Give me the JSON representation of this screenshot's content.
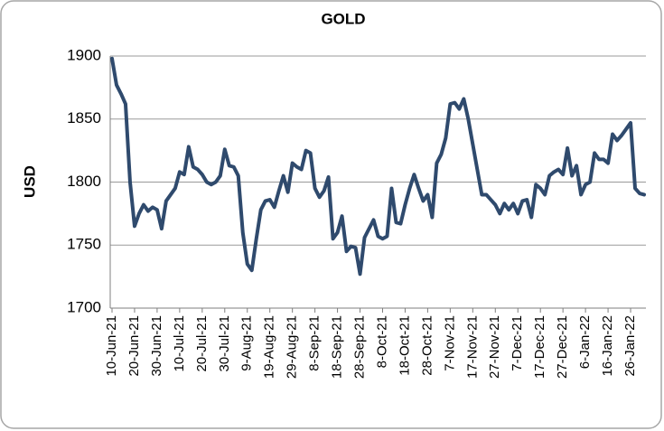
{
  "chart_data": {
    "type": "line",
    "title": "GOLD",
    "y_label": "USD",
    "categories": [
      "10-Jun-21",
      null,
      null,
      null,
      null,
      "20-Jun-21",
      null,
      null,
      null,
      null,
      "30-Jun-21",
      null,
      null,
      null,
      null,
      "10-Jul-21",
      null,
      null,
      null,
      null,
      "20-Jul-21",
      null,
      null,
      null,
      null,
      "30-Jul-21",
      null,
      null,
      null,
      null,
      "9-Aug-21",
      null,
      null,
      null,
      null,
      "19-Aug-21",
      null,
      null,
      null,
      null,
      "29-Aug-21",
      null,
      null,
      null,
      null,
      "8-Sep-21",
      null,
      null,
      null,
      null,
      "18-Sep-21",
      null,
      null,
      null,
      null,
      "28-Sep-21",
      null,
      null,
      null,
      null,
      "8-Oct-21",
      null,
      null,
      null,
      null,
      "18-Oct-21",
      null,
      null,
      null,
      null,
      "28-Oct-21",
      null,
      null,
      null,
      null,
      "7-Nov-21",
      null,
      null,
      null,
      null,
      "17-Nov-21",
      null,
      null,
      null,
      null,
      "27-Nov-21",
      null,
      null,
      null,
      null,
      "7-Dec-21",
      null,
      null,
      null,
      null,
      "17-Dec-21",
      null,
      null,
      null,
      null,
      "27-Dec-21",
      null,
      null,
      null,
      null,
      "6-Jan-22",
      null,
      null,
      null,
      null,
      "16-Jan-22",
      null,
      null,
      null,
      null,
      "26-Jan-22",
      null,
      null,
      null
    ],
    "values": [
      1898,
      1877,
      1870,
      1862,
      1800,
      1765,
      1775,
      1782,
      1777,
      1780,
      1778,
      1763,
      1785,
      1790,
      1795,
      1808,
      1806,
      1828,
      1812,
      1810,
      1806,
      1800,
      1798,
      1800,
      1805,
      1826,
      1813,
      1812,
      1805,
      1760,
      1735,
      1730,
      1755,
      1778,
      1785,
      1786,
      1780,
      1793,
      1805,
      1792,
      1815,
      1812,
      1810,
      1825,
      1823,
      1795,
      1788,
      1793,
      1804,
      1755,
      1760,
      1773,
      1745,
      1749,
      1748,
      1727,
      1756,
      1763,
      1770,
      1757,
      1755,
      1757,
      1795,
      1768,
      1767,
      1782,
      1795,
      1806,
      1795,
      1785,
      1790,
      1772,
      1815,
      1822,
      1835,
      1862,
      1863,
      1858,
      1866,
      1850,
      1830,
      1810,
      1790,
      1790,
      1786,
      1782,
      1775,
      1783,
      1778,
      1783,
      1775,
      1785,
      1786,
      1772,
      1798,
      1795,
      1790,
      1805,
      1808,
      1810,
      1806,
      1827,
      1805,
      1813,
      1790,
      1798,
      1800,
      1823,
      1818,
      1818,
      1815,
      1838,
      1833,
      1837,
      1842,
      1847,
      1795,
      1791,
      1790
    ],
    "color": "#2f4a6d",
    "ylim": [
      1700,
      1900
    ],
    "yticks": [
      1700,
      1750,
      1800,
      1850,
      1900
    ],
    "grid": true
  }
}
